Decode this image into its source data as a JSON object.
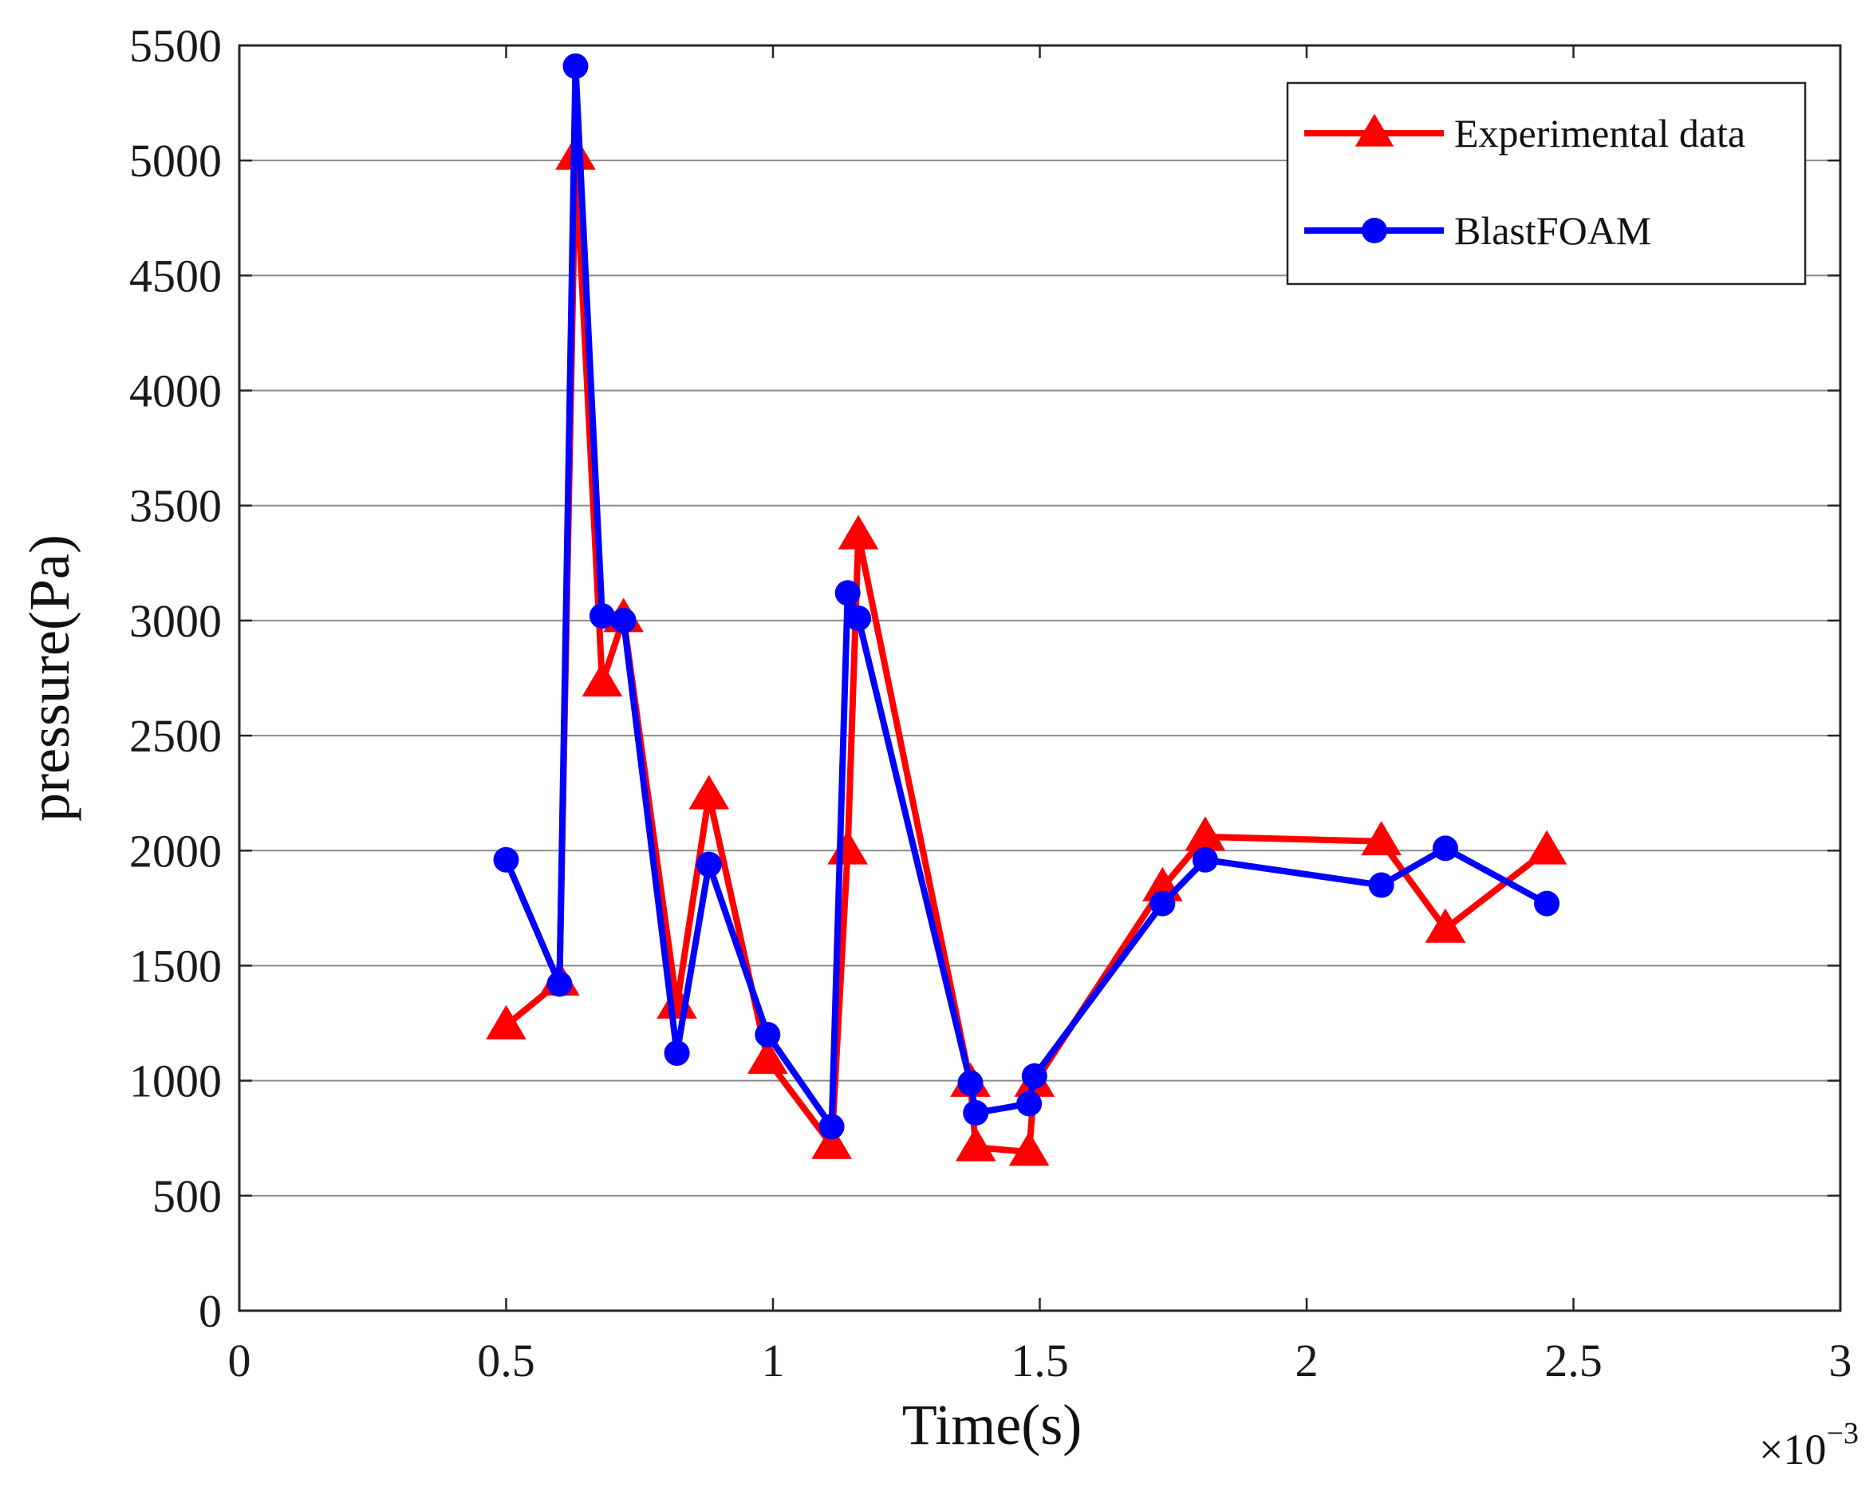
{
  "chart_data": {
    "type": "line",
    "xlabel": "Time(s)",
    "ylabel": "pressure(Pa)",
    "x_multiplier": {
      "base": "×10",
      "exponent": "−3"
    },
    "xlim": [
      0,
      3
    ],
    "ylim": [
      0,
      5500
    ],
    "x_ticks": [
      0,
      0.5,
      1,
      1.5,
      2,
      2.5,
      3
    ],
    "x_tick_labels": [
      "0",
      "0.5",
      "1",
      "1.5",
      "2",
      "2.5",
      "3"
    ],
    "y_ticks": [
      0,
      500,
      1000,
      1500,
      2000,
      2500,
      3000,
      3500,
      4000,
      4500,
      5000,
      5500
    ],
    "y_tick_labels": [
      "0",
      "500",
      "1000",
      "1500",
      "2000",
      "2500",
      "3000",
      "3500",
      "4000",
      "4500",
      "5000",
      "5500"
    ],
    "grid": "horizontal",
    "legend_position": "top-right",
    "series": [
      {
        "name": "Experimental data",
        "color": "#ff0000",
        "marker": "triangle",
        "x": [
          0.5,
          0.6,
          0.63,
          0.68,
          0.72,
          0.82,
          0.88,
          0.99,
          1.11,
          1.14,
          1.16,
          1.37,
          1.38,
          1.48,
          1.49,
          1.73,
          1.81,
          2.14,
          2.26,
          2.45
        ],
        "y": [
          1240,
          1430,
          5020,
          2730,
          3010,
          1330,
          2240,
          1090,
          720,
          2000,
          3370,
          990,
          710,
          690,
          990,
          1840,
          2060,
          2040,
          1660,
          2000
        ]
      },
      {
        "name": "BlastFOAM",
        "color": "#0000ff",
        "marker": "circle",
        "x": [
          0.5,
          0.6,
          0.63,
          0.68,
          0.72,
          0.82,
          0.88,
          0.99,
          1.11,
          1.14,
          1.16,
          1.37,
          1.38,
          1.48,
          1.49,
          1.73,
          1.81,
          2.14,
          2.26,
          2.45
        ],
        "y": [
          1960,
          1420,
          5410,
          3020,
          3000,
          1120,
          1940,
          1200,
          800,
          3120,
          3010,
          990,
          860,
          900,
          1020,
          1770,
          1960,
          1850,
          2010,
          1770
        ]
      }
    ]
  }
}
